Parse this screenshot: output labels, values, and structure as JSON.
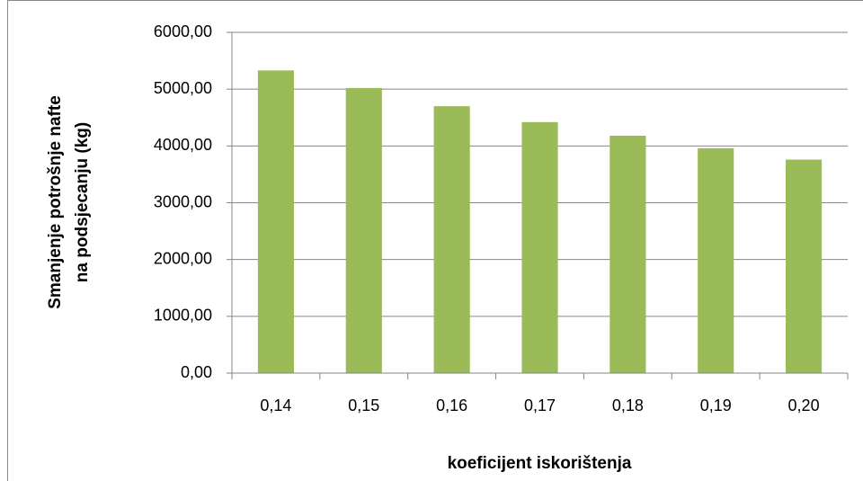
{
  "chart_data": {
    "type": "bar",
    "ylabel": [
      "Smanjenje potrošnje nafte",
      "na podsjecanju (kg)"
    ],
    "xlabel": "koeficijent iskorištenja",
    "categories": [
      "0,14",
      "0,15",
      "0,16",
      "0,17",
      "0,18",
      "0,19",
      "0,20"
    ],
    "values": [
      5330,
      5020,
      4700,
      4420,
      4180,
      3960,
      3760
    ],
    "color": "#9bbb59",
    "ylim": [
      0,
      6000
    ],
    "yticks": [
      {
        "value": 0,
        "label": "0,00"
      },
      {
        "value": 1000,
        "label": "1000,00"
      },
      {
        "value": 2000,
        "label": "2000,00"
      },
      {
        "value": 3000,
        "label": "3000,00"
      },
      {
        "value": 4000,
        "label": "4000,00"
      },
      {
        "value": 5000,
        "label": "5000,00"
      },
      {
        "value": 6000,
        "label": "6000,00"
      }
    ],
    "grid": true
  }
}
